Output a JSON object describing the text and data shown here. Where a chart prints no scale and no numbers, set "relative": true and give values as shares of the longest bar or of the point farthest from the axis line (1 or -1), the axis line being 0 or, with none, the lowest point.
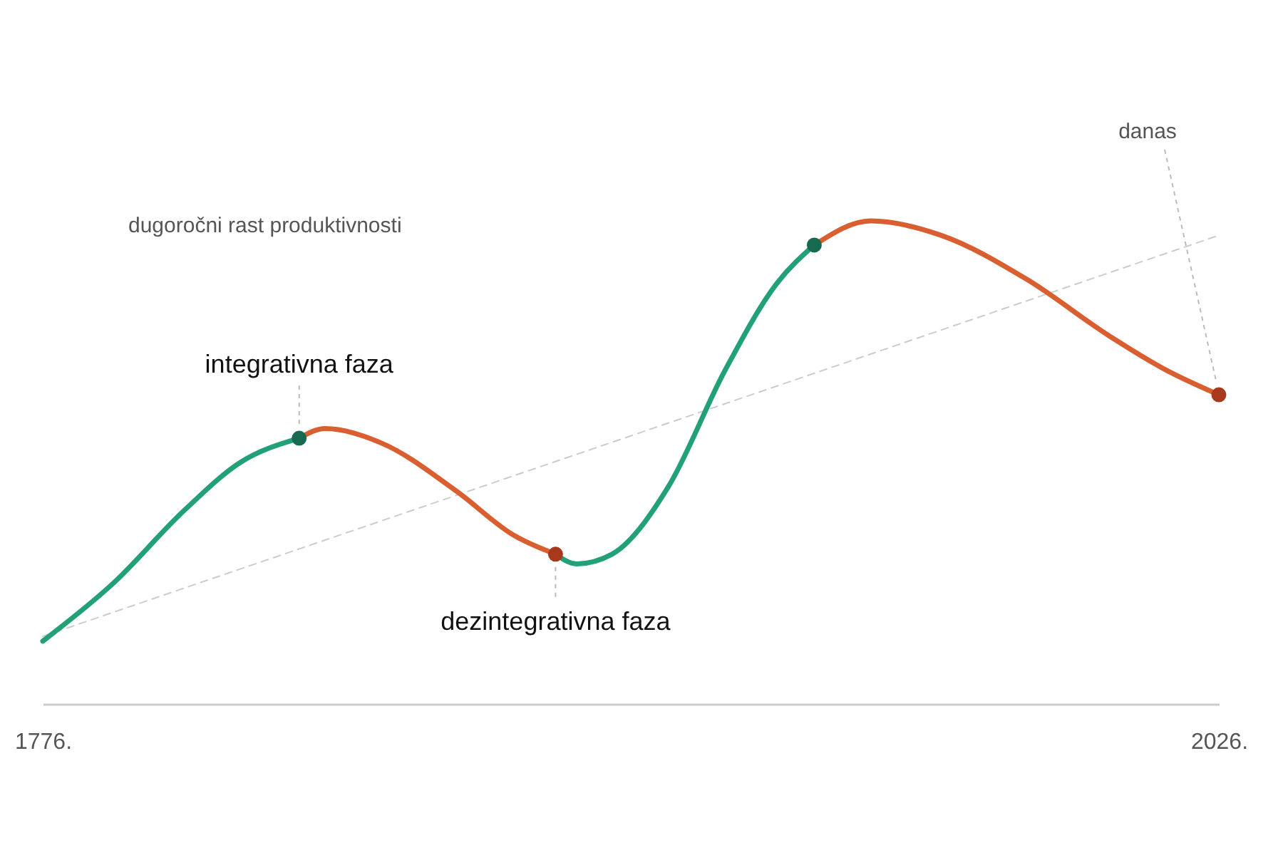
{
  "chart_data": {
    "type": "line",
    "relative": true,
    "xlim": [
      1776,
      2026
    ],
    "xticks": [
      {
        "value": 1776,
        "label": "1776."
      },
      {
        "value": 2026,
        "label": "2026."
      }
    ],
    "series": [
      {
        "type": "line",
        "color": "#cccccc",
        "line_style": "dashed",
        "x": [
          1776,
          2026
        ],
        "values": [
          0.14,
          0.97
        ]
      },
      {
        "type": "line",
        "color": "#22a077",
        "x": [
          1776,
          1791,
          1806,
          1818,
          1830.5
        ],
        "values": [
          0.13,
          0.25,
          0.4,
          0.5,
          0.55
        ]
      },
      {
        "type": "line",
        "color": "#d95f30",
        "x": [
          1830.5,
          1836,
          1848,
          1864,
          1876,
          1885
        ],
        "values": [
          0.55,
          0.57,
          0.54,
          0.44,
          0.35,
          0.31
        ]
      },
      {
        "type": "line",
        "color": "#22a077",
        "x": [
          1885,
          1889.5,
          1897,
          1909,
          1921,
          1932,
          1940
        ],
        "values": [
          0.31,
          0.29,
          0.31,
          0.45,
          0.69,
          0.87,
          0.95
        ]
      },
      {
        "type": "line",
        "color": "#d95f30",
        "x": [
          1940,
          1952,
          1967,
          1985,
          2003,
          2015,
          2026
        ],
        "values": [
          0.95,
          1.0,
          0.97,
          0.88,
          0.76,
          0.69,
          0.64
        ]
      },
      {
        "type": "scatter",
        "color": "#17694f",
        "x": [
          1830.5,
          1940
        ],
        "values": [
          0.55,
          0.95
        ]
      },
      {
        "type": "scatter",
        "color": "#a8391d",
        "x": [
          1885,
          2026
        ],
        "values": [
          0.31,
          0.64
        ]
      }
    ],
    "annotations": [
      "dugoročni rast produktivnosti",
      {
        "text": "integrativna faza",
        "x": 1830.5,
        "y": 0.55
      },
      {
        "text": "dezintegrativna faza",
        "x": 1885,
        "y": 0.31
      },
      "danas"
    ]
  }
}
